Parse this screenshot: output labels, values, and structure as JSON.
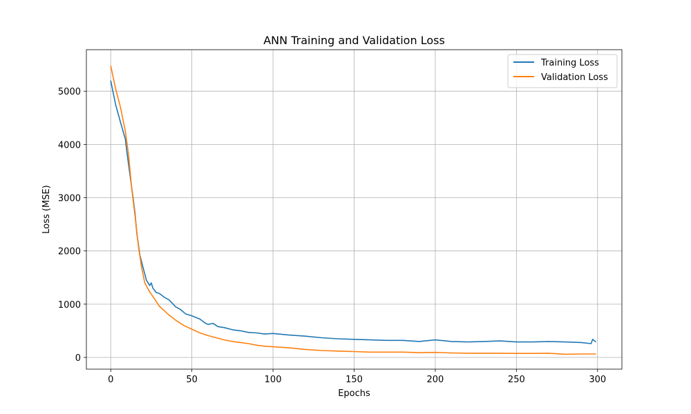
{
  "chart_data": {
    "type": "line",
    "title": "ANN Training and Validation Loss",
    "xlabel": "Epochs",
    "ylabel": "Loss (MSE)",
    "xlim": [
      -15,
      315
    ],
    "ylim": [
      -220,
      5780
    ],
    "xticks": [
      0,
      50,
      100,
      150,
      200,
      250,
      300
    ],
    "yticks": [
      0,
      1000,
      2000,
      3000,
      4000,
      5000
    ],
    "grid": true,
    "legend_position": "top-right",
    "series": [
      {
        "name": "Training Loss",
        "color": "#1f77b4",
        "x": [
          0,
          3,
          6,
          9,
          10,
          12,
          14,
          15,
          16,
          18,
          20,
          22,
          24,
          25,
          26,
          28,
          30,
          33,
          36,
          40,
          43,
          46,
          50,
          55,
          58,
          60,
          63,
          66,
          70,
          75,
          80,
          85,
          90,
          95,
          100,
          110,
          120,
          130,
          140,
          150,
          160,
          170,
          180,
          190,
          200,
          210,
          220,
          230,
          240,
          250,
          260,
          270,
          280,
          290,
          296,
          297,
          299
        ],
        "y": [
          5200,
          4750,
          4420,
          4100,
          3850,
          3400,
          2950,
          2700,
          2350,
          1920,
          1680,
          1450,
          1350,
          1400,
          1300,
          1220,
          1200,
          1130,
          1080,
          950,
          900,
          820,
          780,
          720,
          650,
          620,
          640,
          580,
          560,
          520,
          500,
          470,
          460,
          440,
          450,
          420,
          400,
          370,
          350,
          340,
          330,
          320,
          320,
          300,
          330,
          300,
          290,
          300,
          310,
          290,
          290,
          300,
          290,
          280,
          260,
          340,
          290
        ]
      },
      {
        "name": "Validation Loss",
        "color": "#ff7f0e",
        "x": [
          0,
          3,
          6,
          9,
          11,
          13,
          15,
          17,
          19,
          21,
          24,
          27,
          30,
          35,
          40,
          45,
          50,
          55,
          60,
          65,
          70,
          75,
          80,
          85,
          90,
          95,
          100,
          110,
          120,
          130,
          140,
          150,
          160,
          170,
          180,
          190,
          200,
          210,
          220,
          230,
          240,
          250,
          260,
          270,
          280,
          290,
          299
        ],
        "y": [
          5480,
          5050,
          4700,
          4250,
          3800,
          3150,
          2650,
          2100,
          1700,
          1400,
          1230,
          1100,
          960,
          820,
          700,
          600,
          530,
          460,
          410,
          370,
          330,
          300,
          280,
          260,
          230,
          210,
          200,
          180,
          150,
          130,
          120,
          110,
          100,
          100,
          100,
          90,
          95,
          85,
          80,
          80,
          80,
          75,
          75,
          80,
          60,
          65,
          65
        ]
      }
    ]
  }
}
